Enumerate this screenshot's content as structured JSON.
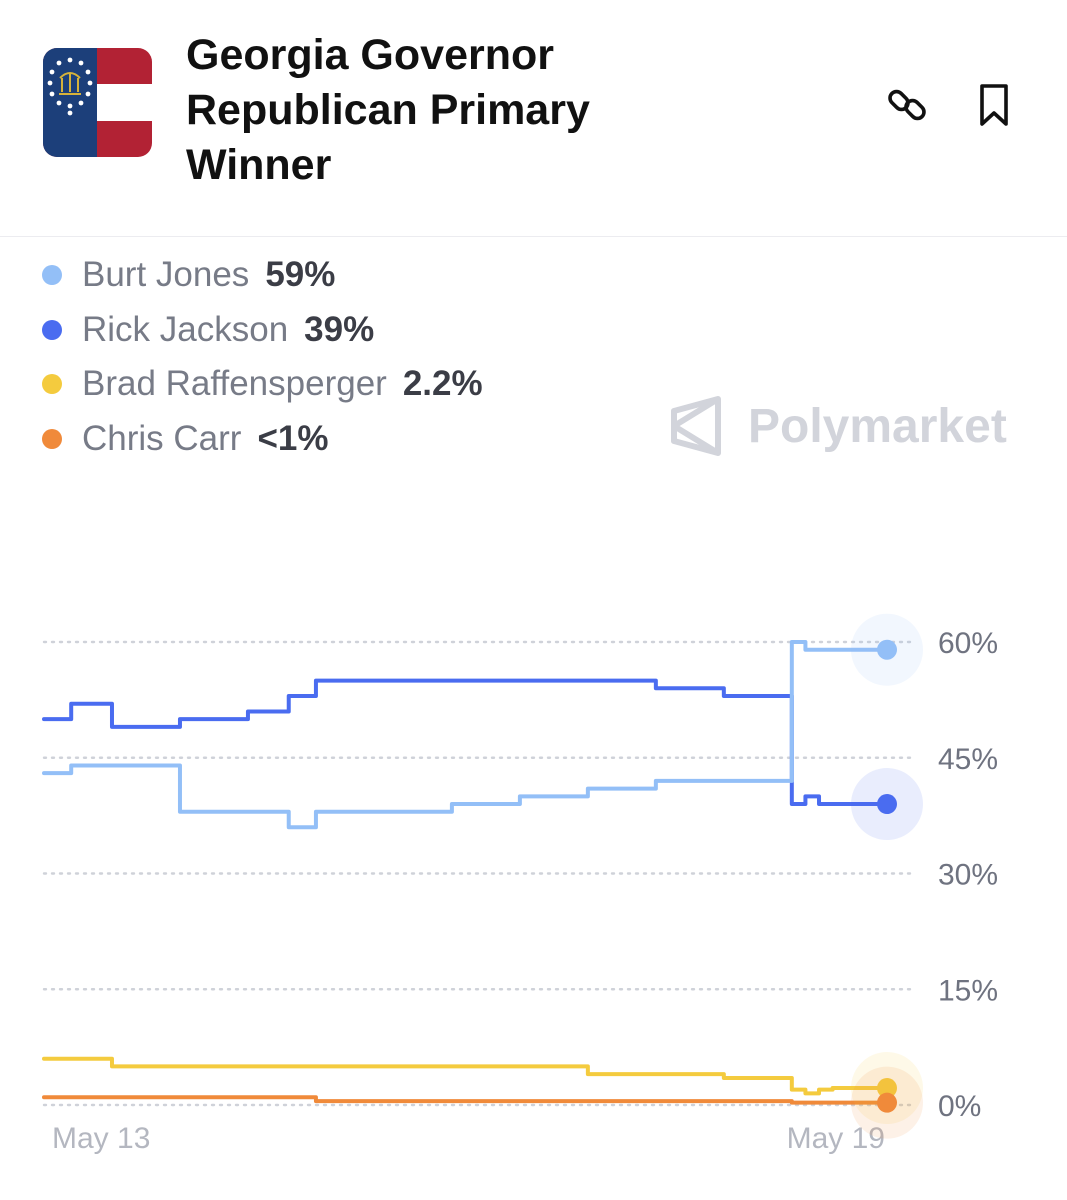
{
  "header": {
    "title": "Georgia Governor Republican Primary Winner",
    "flag_icon": "georgia-state-flag",
    "link_icon": "link-icon",
    "bookmark_icon": "bookmark-icon"
  },
  "legend": [
    {
      "name": "Burt Jones",
      "pct": "59%",
      "color": "#93bff7"
    },
    {
      "name": "Rick Jackson",
      "pct": "39%",
      "color": "#4a6cf0"
    },
    {
      "name": "Brad Raffensperger",
      "pct": "2.2%",
      "color": "#f4cb3e"
    },
    {
      "name": "Chris Carr",
      "pct": "<1%",
      "color": "#f08a3a"
    }
  ],
  "watermark": "Polymarket",
  "chart_data": {
    "type": "line",
    "x_start": "May 13",
    "x_end": "May 19",
    "xtick_labels": [
      "May 13",
      "May 19"
    ],
    "ytick_labels": [
      "60%",
      "45%",
      "30%",
      "15%",
      "0%"
    ],
    "yticks": [
      60,
      45,
      30,
      15,
      0
    ],
    "ylim": [
      0,
      60
    ],
    "grid": true,
    "x": [
      13.0,
      13.2,
      13.5,
      14.0,
      14.5,
      14.8,
      15.0,
      15.3,
      15.6,
      16.0,
      16.5,
      17.0,
      17.5,
      18.0,
      18.3,
      18.5,
      18.6,
      18.7,
      18.8,
      19.0,
      19.2
    ],
    "series": [
      {
        "name": "Burt Jones",
        "color": "#93bff7",
        "values": [
          43,
          44,
          44,
          38,
          38,
          36,
          38,
          38,
          38,
          39,
          40,
          41,
          42,
          42,
          42,
          60,
          59,
          59,
          59,
          59,
          59
        ]
      },
      {
        "name": "Rick Jackson",
        "color": "#4a6cf0",
        "values": [
          50,
          52,
          49,
          50,
          51,
          53,
          55,
          55,
          55,
          55,
          55,
          55,
          54,
          53,
          53,
          39,
          40,
          39,
          39,
          39,
          39
        ]
      },
      {
        "name": "Brad Raffensperger",
        "color": "#f4cb3e",
        "values": [
          6,
          6,
          5,
          5,
          5,
          5,
          5,
          5,
          5,
          5,
          5,
          4,
          4,
          3.5,
          3.5,
          2,
          1.5,
          2,
          2.2,
          2.2,
          2.2
        ]
      },
      {
        "name": "Chris Carr",
        "color": "#f08a3a",
        "values": [
          1,
          1,
          1,
          1,
          1,
          1,
          0.5,
          0.5,
          0.5,
          0.5,
          0.5,
          0.5,
          0.5,
          0.5,
          0.5,
          0.3,
          0.3,
          0.3,
          0.3,
          0.3,
          0.3
        ]
      }
    ]
  }
}
